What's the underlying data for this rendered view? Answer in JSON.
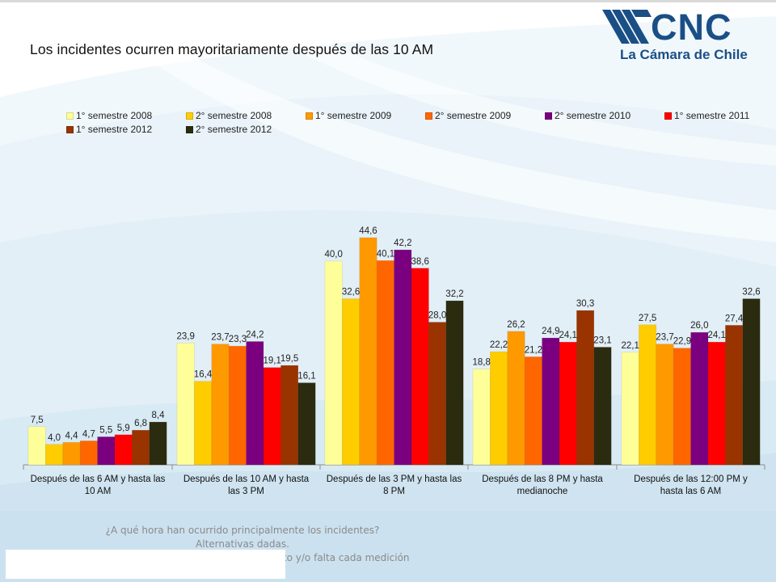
{
  "title": "Los incidentes ocurren mayoritariamente después de las 10 AM",
  "logo": {
    "icon": "cnc-stripes-logo",
    "word": "CNC",
    "subtitle": "La Cámara de Chile"
  },
  "colors": {
    "brand": "#1a4f86",
    "series": [
      "#ffff99",
      "#ffcc00",
      "#ff9900",
      "#ff6600",
      "#7a0080",
      "#ff0000",
      "#993300",
      "#2b2b0f"
    ]
  },
  "chart_data": {
    "type": "bar",
    "title": "",
    "xlabel": "",
    "ylabel": "",
    "ylim": [
      0,
      48
    ],
    "grid": false,
    "legend_position": "top",
    "categories": [
      [
        "Después de las 6 AM y hasta las",
        "10 AM"
      ],
      [
        "Después de las 10 AM y hasta",
        "las 3 PM"
      ],
      [
        "Después de las 3 PM y hasta las",
        "8 PM"
      ],
      [
        "Después de las 8 PM  y hasta",
        "medianoche"
      ],
      [
        "Después de las 12:00 PM y",
        "hasta las 6 AM"
      ]
    ],
    "series": [
      {
        "name": "1° semestre 2008",
        "values": [
          7.5,
          23.9,
          40.0,
          18.8,
          22.1
        ]
      },
      {
        "name": "2° semestre 2008",
        "values": [
          4.0,
          16.4,
          32.6,
          22.2,
          27.5
        ]
      },
      {
        "name": "1° semestre 2009",
        "values": [
          4.4,
          23.7,
          44.6,
          26.2,
          23.7
        ]
      },
      {
        "name": "2° semestre 2009",
        "values": [
          4.7,
          23.3,
          40.1,
          21.2,
          22.9
        ]
      },
      {
        "name": "2° semestre 2010",
        "values": [
          5.5,
          24.2,
          42.2,
          24.9,
          26.0
        ]
      },
      {
        "name": "1° semestre 2011",
        "values": [
          5.9,
          19.1,
          38.6,
          24.1,
          24.1
        ]
      },
      {
        "name": "1° semestre 2012",
        "values": [
          6.8,
          19.5,
          28.0,
          30.3,
          27.4
        ]
      },
      {
        "name": "2° semestre 2012",
        "values": [
          8.4,
          16.1,
          32.2,
          23.1,
          32.6
        ]
      }
    ],
    "value_labels": [
      [
        "7,5",
        "23,9",
        "40,0",
        "18,8",
        "22,1"
      ],
      [
        "4,0",
        "16,4",
        "32,6",
        "22,2",
        "27,5"
      ],
      [
        "4,4",
        "23,7",
        "44,6",
        "26,2",
        "23,7"
      ],
      [
        "4,7",
        "23,3",
        "40,1",
        "21,2",
        "22,9"
      ],
      [
        "5,5",
        "24,2",
        "42,2",
        "24,9",
        "26,0"
      ],
      [
        "5,9",
        "19,1",
        "38,6",
        "24,1",
        "24,1"
      ],
      [
        "6,8",
        "19,5",
        "28,0",
        "30,3",
        "27,4"
      ],
      [
        "8,4",
        "16,1",
        "32,2",
        "23,1",
        "32,6"
      ]
    ]
  },
  "footnote": {
    "line1": "¿A qué hora han ocurrido principalmente los incidentes?",
    "line2": "Alternativas dadas.",
    "line3": "Base: quienes fueron víctima de algún delito y/o falta cada medición"
  }
}
